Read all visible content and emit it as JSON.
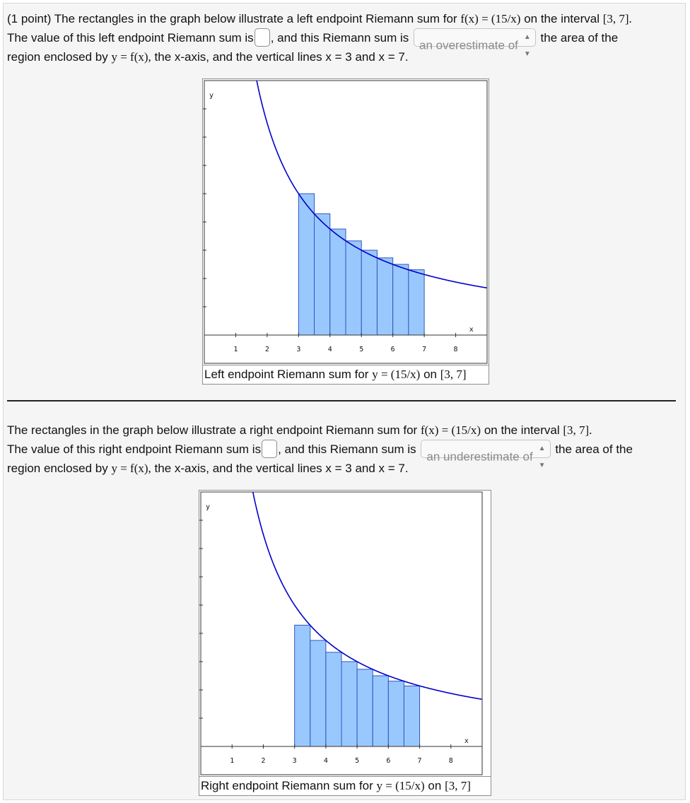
{
  "problem1": {
    "intro": "(1 point) The rectangles in the graph below illustrate a left endpoint Riemann sum for",
    "func": "f(x) = (15/x)",
    "on_interval": "on the interval",
    "interval": "[3, 7].",
    "value_prefix": "The value of this left endpoint Riemann sum is",
    "answer_value": "",
    "mid_text": ", and this Riemann sum is",
    "select_value": "an overestimate of",
    "after_select": "the area of the",
    "line3_a": "region enclosed by",
    "yfx": "y = f(x),",
    "line3_b": "the x-axis, and the vertical lines x = 3 and x = 7.",
    "caption_a": "Left endpoint Riemann sum for",
    "caption_func": "y = (15/x)",
    "caption_on": "on",
    "caption_interval": "[3, 7]"
  },
  "problem2": {
    "intro": "The rectangles in the graph below illustrate a right endpoint Riemann sum for",
    "func": "f(x) = (15/x)",
    "on_interval": "on the interval",
    "interval": "[3, 7].",
    "value_prefix": "The value of this right endpoint Riemann sum is",
    "answer_value": "",
    "mid_text": ", and this Riemann sum is",
    "select_value": "an underestimate of",
    "after_select": "the area of the",
    "line3_a": "region enclosed by",
    "yfx": "y = f(x),",
    "line3_b": "the x-axis, and the vertical lines x = 3 and x = 7.",
    "caption_a": "Right endpoint Riemann sum for",
    "caption_func": "y = (15/x)",
    "caption_on": "on",
    "caption_interval": "[3, 7]"
  },
  "chart_data": [
    {
      "type": "bar",
      "method": "left",
      "function_coefficient": 15,
      "interval": [
        3,
        7
      ],
      "subintervals": 8,
      "x": [
        3,
        3.5,
        4,
        4.5,
        5,
        5.5,
        6,
        6.5
      ],
      "values": [
        5.0,
        4.29,
        3.75,
        3.33,
        3.0,
        2.73,
        2.5,
        2.31
      ],
      "xlim": [
        0,
        9
      ],
      "ylim": [
        -1,
        9
      ],
      "x_ticks": [
        1,
        2,
        3,
        4,
        5,
        6,
        7,
        8
      ],
      "y_ticks": [
        1,
        2,
        3,
        4,
        5,
        6,
        7,
        8
      ],
      "xlabel": "x",
      "ylabel": "y",
      "curve_color": "#0000cc",
      "bar_color": "#99c8ff",
      "bar_edge": "#3355bb"
    },
    {
      "type": "bar",
      "method": "right",
      "function_coefficient": 15,
      "interval": [
        3,
        7
      ],
      "subintervals": 8,
      "x": [
        3,
        3.5,
        4,
        4.5,
        5,
        5.5,
        6,
        6.5
      ],
      "values": [
        4.29,
        3.75,
        3.33,
        3.0,
        2.73,
        2.5,
        2.31,
        2.14
      ],
      "xlim": [
        0,
        9
      ],
      "ylim": [
        -1,
        9
      ],
      "x_ticks": [
        1,
        2,
        3,
        4,
        5,
        6,
        7,
        8
      ],
      "y_ticks": [
        1,
        2,
        3,
        4,
        5,
        6,
        7,
        8
      ],
      "xlabel": "x",
      "ylabel": "y",
      "curve_color": "#0000cc",
      "bar_color": "#99c8ff",
      "bar_edge": "#3355bb"
    }
  ]
}
